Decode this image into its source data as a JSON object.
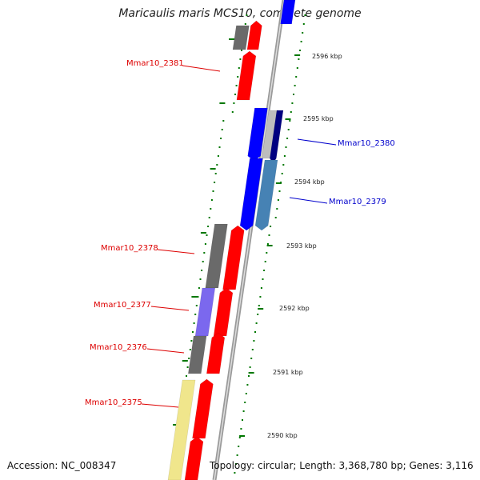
{
  "title": "Maricaulis maris MCS10, complete genome",
  "accession": "Accession: NC_008347",
  "topology": "Topology: circular; Length: 3,368,780 bp; Genes: 3,116",
  "colors": {
    "forward_cds": "#ff0000",
    "reverse_cds": "#0000ff",
    "label_forward": "#dd0000",
    "label_reverse": "#0000cc",
    "tick": "#007700",
    "backbone": "#999999"
  },
  "genes": [
    {
      "id": "Mmar10_2381",
      "label": "Mmar10_2381",
      "strand": "forward"
    },
    {
      "id": "Mmar10_2380",
      "label": "Mmar10_2380",
      "strand": "reverse"
    },
    {
      "id": "Mmar10_2379",
      "label": "Mmar10_2379",
      "strand": "reverse"
    },
    {
      "id": "Mmar10_2378",
      "label": "Mmar10_2378",
      "strand": "forward"
    },
    {
      "id": "Mmar10_2377",
      "label": "Mmar10_2377",
      "strand": "forward"
    },
    {
      "id": "Mmar10_2376",
      "label": "Mmar10_2376",
      "strand": "forward"
    },
    {
      "id": "Mmar10_2375",
      "label": "Mmar10_2375",
      "strand": "forward"
    }
  ],
  "position_ticks": [
    "2596 kbp",
    "2595 kbp",
    "2594 kbp",
    "2593 kbp",
    "2592 kbp",
    "2591 kbp",
    "2590 kbp"
  ]
}
